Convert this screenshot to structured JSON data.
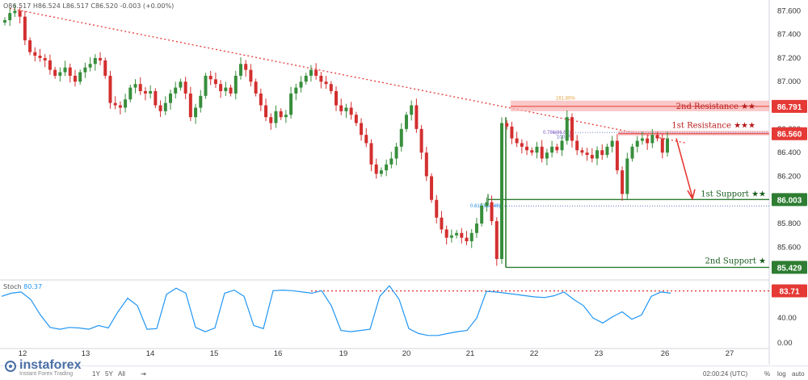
{
  "header": {
    "ohlc_text": "O86.517  H86.524  L86.517  C86.520  -0.003 (+0.00%)"
  },
  "stoch": {
    "label": "Stoch",
    "value": "80.37",
    "level_label": "83.71",
    "ticks": [
      "80.00",
      "40.00",
      "0.00"
    ]
  },
  "levels": {
    "res2": {
      "name": "2nd Resistance ★★",
      "value": "86.791"
    },
    "res1": {
      "name": "1st Resistance ★★★",
      "value": "86.560"
    },
    "sup1": {
      "name": "1st Support ★★",
      "value": "86.003"
    },
    "sup2": {
      "name": "2nd Support ★",
      "value": "85.429"
    },
    "fib_1618": "161.80%",
    "fib_0786": "0.786(86.57)",
    "fib_100": "100.0%",
    "fib_0618": "0.618(85.949)"
  },
  "colors": {
    "bull": "#26a69a",
    "bear": "#ef5350",
    "bull_body": "#388e3c",
    "bear_body": "#d32f2f",
    "resistance": "#e53935",
    "support": "#2e7d32",
    "trendline": "#e53935",
    "stoch_line": "#2196f3"
  },
  "chart_data": {
    "type": "candlestick",
    "symbol": "",
    "ylim": [
      85.35,
      87.65
    ],
    "y_ticks": [
      "87.600",
      "87.400",
      "87.200",
      "87.000",
      "86.800",
      "86.600",
      "86.400",
      "86.200",
      "86.000",
      "85.800",
      "85.600"
    ],
    "x_ticks": [
      "12",
      "13",
      "14",
      "15",
      "16",
      "19",
      "20",
      "21",
      "22",
      "23",
      "26",
      "27"
    ],
    "close_path": [
      87.52,
      87.58,
      87.6,
      87.55,
      87.35,
      87.25,
      87.22,
      87.2,
      87.18,
      87.1,
      87.05,
      87.08,
      87.12,
      87.05,
      87.0,
      87.08,
      87.12,
      87.15,
      87.2,
      87.18,
      87.05,
      86.82,
      86.8,
      86.78,
      86.85,
      86.95,
      86.98,
      86.92,
      86.9,
      86.92,
      86.8,
      86.75,
      86.82,
      86.9,
      86.95,
      87.0,
      86.9,
      86.7,
      86.78,
      86.88,
      87.05,
      87.02,
      86.98,
      86.92,
      86.95,
      86.9,
      87.05,
      87.15,
      87.1,
      87.0,
      86.9,
      86.8,
      86.7,
      86.65,
      86.75,
      86.7,
      86.72,
      86.9,
      86.95,
      87.0,
      87.05,
      87.1,
      87.05,
      87.0,
      86.98,
      86.92,
      86.8,
      86.75,
      86.78,
      86.72,
      86.65,
      86.55,
      86.48,
      86.3,
      86.22,
      86.25,
      86.3,
      86.35,
      86.45,
      86.6,
      86.72,
      86.8,
      86.6,
      86.4,
      86.2,
      86.0,
      85.85,
      85.75,
      85.68,
      85.7,
      85.72,
      85.68,
      85.65,
      85.72,
      85.8,
      85.95,
      85.98,
      85.82,
      85.5,
      86.65,
      86.62,
      86.52,
      86.48,
      86.45,
      86.42,
      86.4,
      86.45,
      86.35,
      86.4,
      86.45,
      86.42,
      86.5,
      86.7,
      86.5,
      86.42,
      86.4,
      86.38,
      86.35,
      86.42,
      86.38,
      86.45,
      86.5,
      86.25,
      86.05,
      86.35,
      86.45,
      86.5,
      86.52,
      86.48,
      86.55,
      86.52,
      86.4,
      86.52
    ],
    "stoch_values": [
      75,
      80,
      82,
      70,
      45,
      25,
      22,
      25,
      24,
      22,
      28,
      24,
      50,
      72,
      60,
      22,
      23,
      78,
      88,
      80,
      25,
      18,
      24,
      80,
      85,
      75,
      28,
      23,
      84,
      85,
      84,
      82,
      80,
      84,
      60,
      20,
      18,
      20,
      22,
      75,
      92,
      70,
      23,
      15,
      12,
      12,
      15,
      18,
      20,
      40,
      83,
      82,
      80,
      78,
      76,
      74,
      73,
      76,
      82,
      70,
      60,
      40,
      32,
      42,
      50,
      38,
      45,
      75,
      82,
      80
    ]
  }
}
